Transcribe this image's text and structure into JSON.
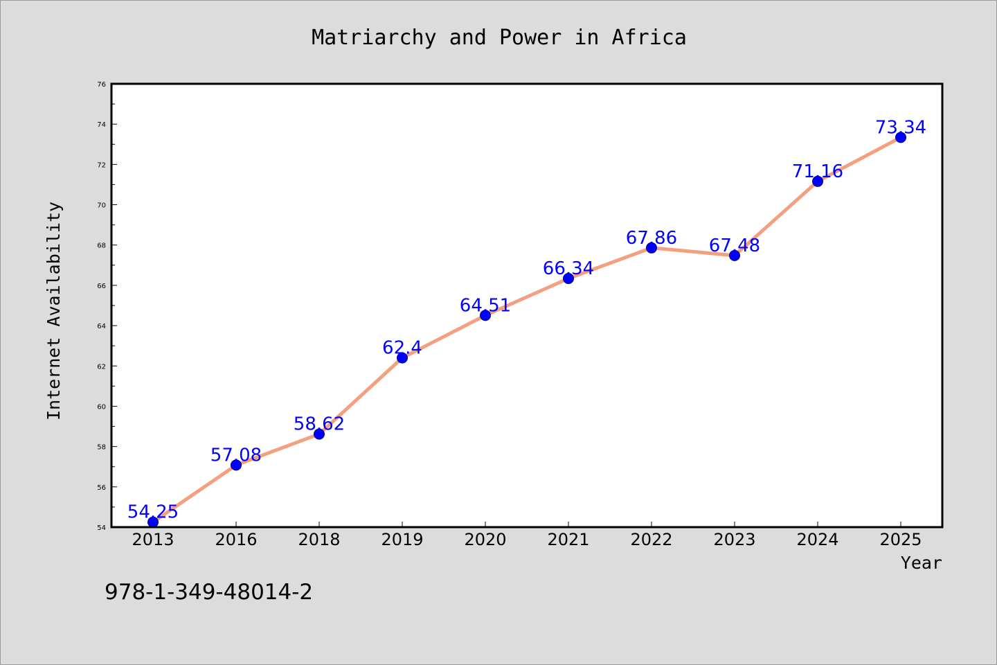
{
  "chart_data": {
    "type": "line",
    "title": "Matriarchy and Power in Africa",
    "xlabel": "Year",
    "ylabel": "Internet Availability",
    "categories": [
      "2013",
      "2016",
      "2018",
      "2019",
      "2020",
      "2021",
      "2022",
      "2023",
      "2024",
      "2025"
    ],
    "values": [
      54.25,
      57.08,
      58.62,
      62.4,
      64.51,
      66.34,
      67.86,
      67.48,
      71.16,
      73.34
    ],
    "data_labels": [
      "54.25",
      "57.08",
      "58.62",
      "62.4",
      "64.51",
      "66.34",
      "67.86",
      "67.48",
      "71.16",
      "73.34"
    ],
    "ylim": [
      54,
      76
    ],
    "yticks": [
      "54",
      "56",
      "58",
      "60",
      "62",
      "64",
      "66",
      "68",
      "70",
      "72",
      "74",
      "76"
    ],
    "grid": false,
    "legend": "none",
    "colors": {
      "line": "#f4a080",
      "marker": "#0000ff",
      "label": "#0000ff",
      "background": "#dcdcdc",
      "plot_background": "#ffffff"
    }
  },
  "annotation": {
    "code": "978-1-349-48014-2"
  }
}
